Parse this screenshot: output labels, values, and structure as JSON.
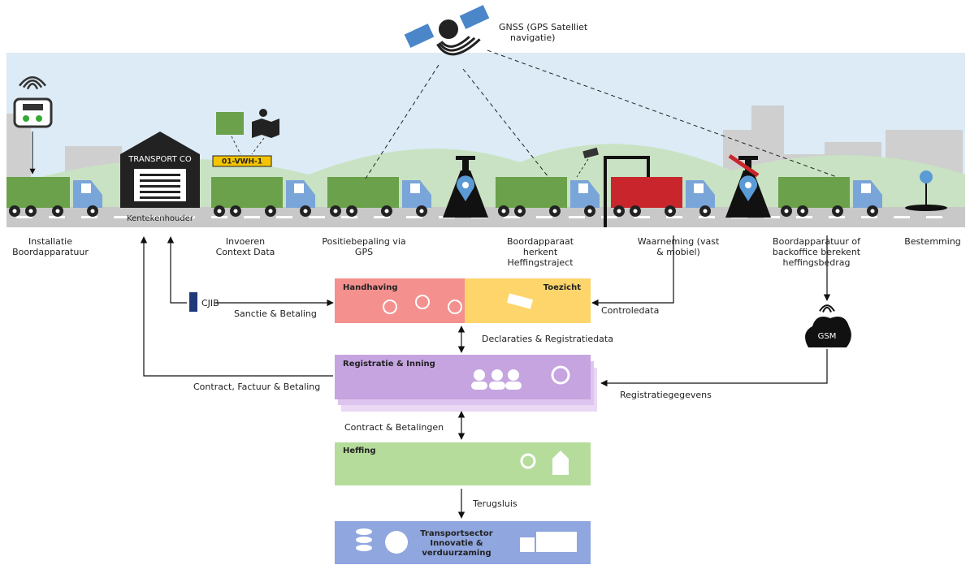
{
  "gnss": [
    "GNSS (GPS Satelliet",
    "navigatie)"
  ],
  "depot": {
    "sign": "TRANSPORT CO",
    "label": "Kentekenhouder"
  },
  "plate": "01-VWH-1",
  "steps": [
    [
      "Installatie",
      "Boordapparatuur"
    ],
    [
      "Invoeren",
      "Context Data"
    ],
    [
      "Positiebepaling via",
      "GPS"
    ],
    [
      "Boordapparaat",
      "herkent",
      "Heffingstraject"
    ],
    [
      "Waarneming (vast",
      "& mobiel)"
    ],
    [
      "Boordapparatuur of",
      "backoffice berekent",
      "heffingsbedrag"
    ],
    [
      "Bestemming"
    ]
  ],
  "boxes": {
    "handhaving": "Handhaving",
    "toezicht": "Toezicht",
    "registratie": "Registratie & Inning",
    "heffing": "Heffing",
    "transport": [
      "Transportsector",
      "Innovatie &",
      "verduurzaming"
    ]
  },
  "flows": {
    "cjib": "CJIB",
    "sanctie": "Sanctie & Betaling",
    "controle": "Controledata",
    "declaraties": "Declaraties & Registratiedata",
    "contract": "Contract, Factuur & Betaling",
    "registratiegegevens": "Registratiegegevens",
    "gsm": "GSM",
    "betalingen": "Contract & Betalingen",
    "terugsluis": "Terugsluis"
  }
}
